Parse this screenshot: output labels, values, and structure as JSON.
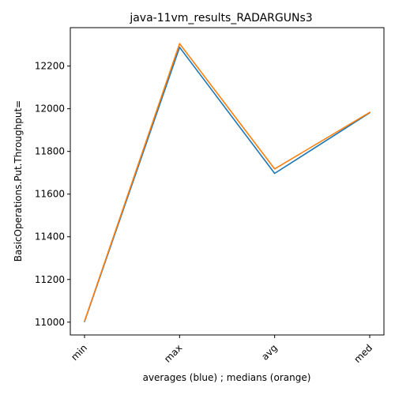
{
  "chart_data": {
    "type": "line",
    "title": "java-11vm_results_RADARGUNs3",
    "xlabel": "averages (blue) ; medians (orange)",
    "ylabel": "BasicOperations.Put.Throughput=",
    "categories": [
      "min",
      "max",
      "avg",
      "med"
    ],
    "ylim": [
      10940,
      12380
    ],
    "yticks": [
      11000,
      11200,
      11400,
      11600,
      11800,
      12000,
      12200
    ],
    "grid": false,
    "series": [
      {
        "color": "#1f77b4",
        "values": [
          11003,
          12288,
          11697,
          11981
        ]
      },
      {
        "color": "#ff7f0e",
        "values": [
          11005,
          12305,
          11718,
          11983
        ]
      }
    ]
  }
}
